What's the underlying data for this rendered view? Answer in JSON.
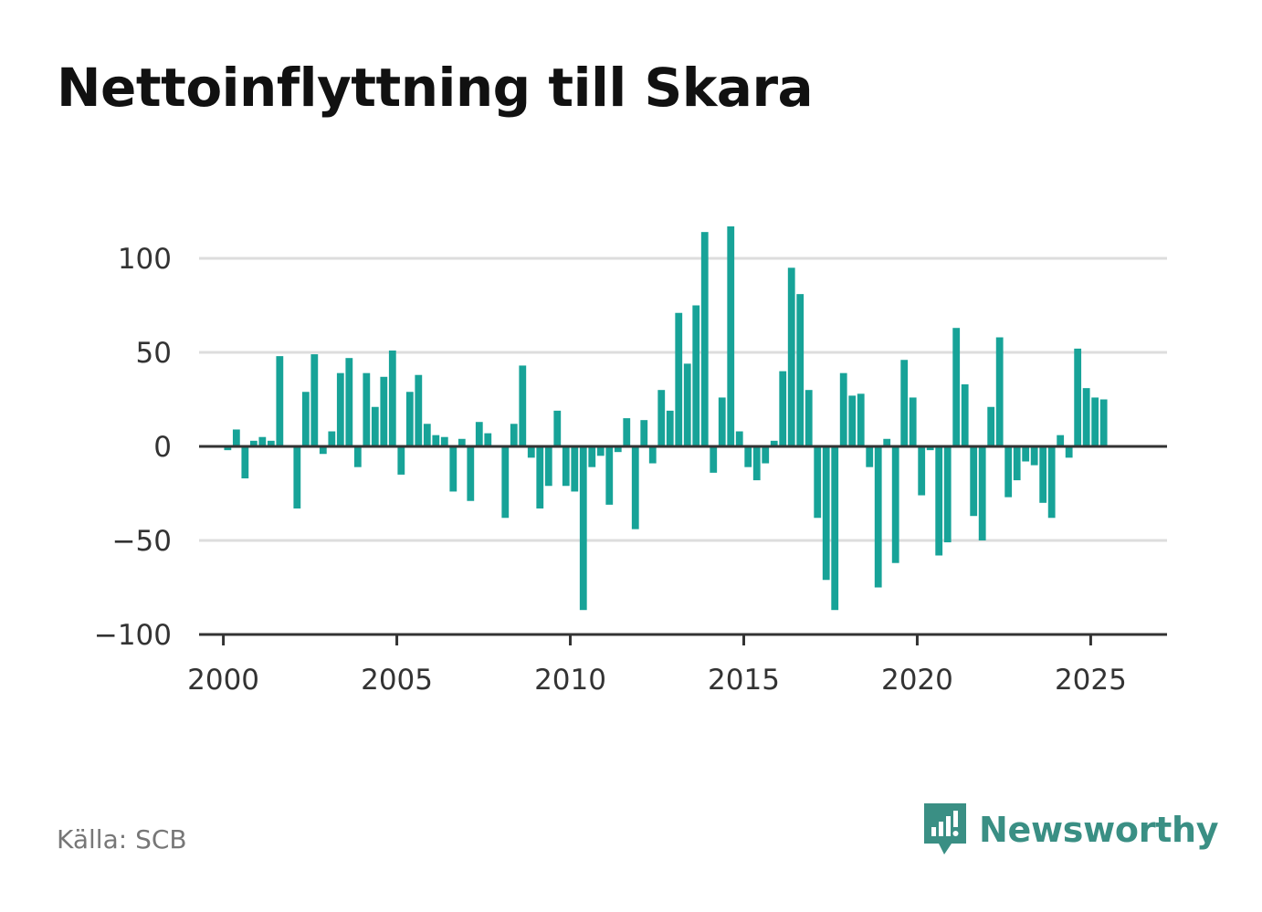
{
  "title": "Nettoinflyttning till Skara",
  "source": "Källa: SCB",
  "brand": {
    "name": "Newsworthy",
    "icon": "newsworthy-logo-icon",
    "color": "#3a8f84"
  },
  "colors": {
    "bar": "#17a398",
    "grid": "#dddddd",
    "axis": "#333333"
  },
  "chart_data": {
    "type": "bar",
    "title": "Nettoinflyttning till Skara",
    "xlabel": "",
    "ylabel": "",
    "ylim": [
      -100,
      120
    ],
    "xlim": [
      1999.3,
      2027.2
    ],
    "grid": true,
    "yticks": [
      100,
      50,
      0,
      -50,
      -100
    ],
    "ytick_labels": [
      "100",
      "50",
      "0",
      "−50",
      "−100"
    ],
    "xticks": [
      2000,
      2005,
      2010,
      2015,
      2020,
      2025
    ],
    "xtick_labels": [
      "2000",
      "2005",
      "2010",
      "2015",
      "2020",
      "2025"
    ],
    "series": [
      {
        "x": [
          2000.125,
          2000.375,
          2000.625,
          2000.875,
          2001.125,
          2001.375,
          2001.625,
          2001.875,
          2002.125,
          2002.375,
          2002.625,
          2002.875,
          2003.125,
          2003.375,
          2003.625,
          2003.875,
          2004.125,
          2004.375,
          2004.625,
          2004.875,
          2005.125,
          2005.375,
          2005.625,
          2005.875,
          2006.125,
          2006.375,
          2006.625,
          2006.875,
          2007.125,
          2007.375,
          2007.625,
          2007.875,
          2008.125,
          2008.375,
          2008.625,
          2008.875,
          2009.125,
          2009.375,
          2009.625,
          2009.875,
          2010.125,
          2010.375,
          2010.625,
          2010.875,
          2011.125,
          2011.375,
          2011.625,
          2011.875,
          2012.125,
          2012.375,
          2012.625,
          2012.875,
          2013.125,
          2013.375,
          2013.625,
          2013.875,
          2014.125,
          2014.375,
          2014.625,
          2014.875,
          2015.125,
          2015.375,
          2015.625,
          2015.875,
          2016.125,
          2016.375,
          2016.625,
          2016.875,
          2017.125,
          2017.375,
          2017.625,
          2017.875,
          2018.125,
          2018.375,
          2018.625,
          2018.875,
          2019.125,
          2019.375,
          2019.625,
          2019.875,
          2020.125,
          2020.375,
          2020.625,
          2020.875,
          2021.125,
          2021.375,
          2021.625,
          2021.875,
          2022.125,
          2022.375,
          2022.625,
          2022.875,
          2023.125,
          2023.375,
          2023.625,
          2023.875,
          2024.125,
          2024.375,
          2024.625,
          2024.875,
          2025.125,
          2025.375
        ],
        "values": [
          -2,
          9,
          -17,
          3,
          5,
          3,
          48,
          0,
          -33,
          29,
          49,
          -4,
          8,
          39,
          47,
          -11,
          39,
          21,
          37,
          51,
          -15,
          29,
          38,
          12,
          6,
          5,
          -24,
          4,
          -29,
          13,
          7,
          0,
          -38,
          12,
          43,
          -6,
          -33,
          -21,
          19,
          -21,
          -24,
          -87,
          -11,
          -5,
          -31,
          -3,
          15,
          -44,
          14,
          -9,
          30,
          19,
          71,
          44,
          75,
          114,
          -14,
          26,
          117,
          8,
          -11,
          -18,
          -9,
          3,
          40,
          95,
          81,
          30,
          -38,
          -71,
          -87,
          39,
          27,
          28,
          -11,
          -75,
          4,
          -62,
          46,
          26,
          -26,
          -2,
          -58,
          -51,
          63,
          33,
          -37,
          -50,
          21,
          58,
          -27,
          -18,
          -8,
          -10,
          -30,
          -38,
          6,
          -6,
          52,
          31,
          26,
          25
        ]
      }
    ]
  }
}
